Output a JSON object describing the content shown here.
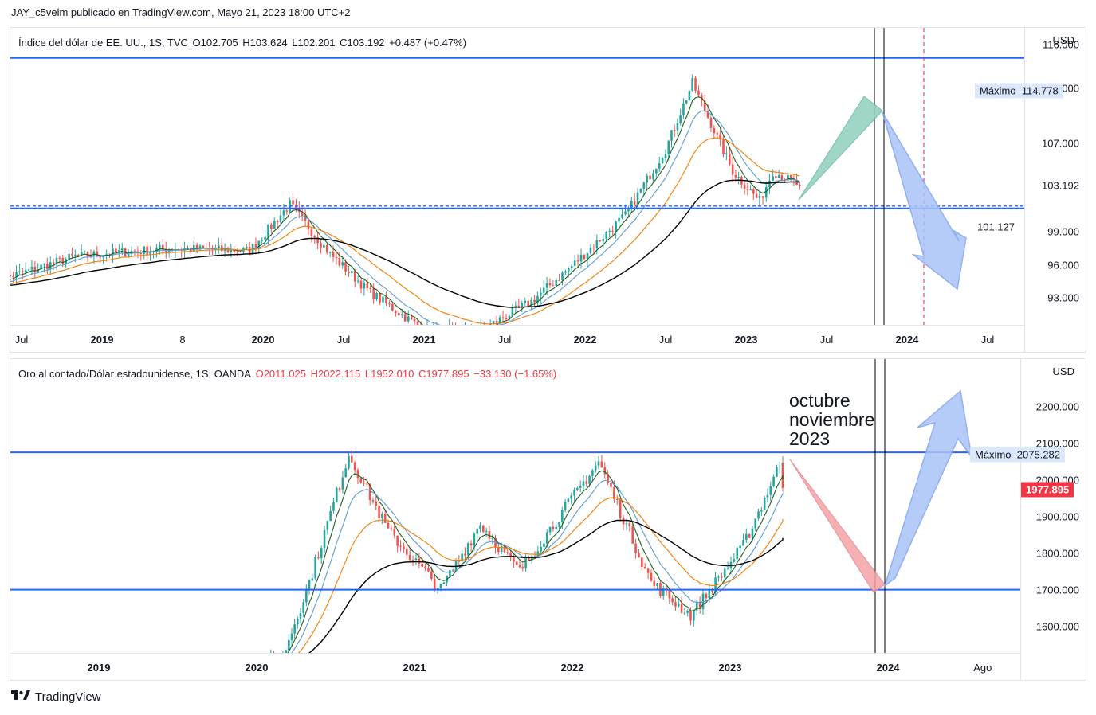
{
  "header": {
    "publisher": "JAY_c5velm publicado en TradingView.com, Mayo 21, 2023 18:00 UTC+2"
  },
  "footer": {
    "brand": "TradingView",
    "logo_icon": "tradingview-logo-icon"
  },
  "colors": {
    "up": "#26a69a",
    "down": "#ef5350",
    "level_line": "#2962ff",
    "ema_fast": "#1b5e20",
    "ema_mid": "#5b9bd5",
    "ema_slow": "#f57c00",
    "sma_long": "#000000",
    "proj_up": "#8fcfbf",
    "proj_down": "#f4a3a8",
    "arrow_fill": "#a9c3f7"
  },
  "chart_data": [
    {
      "type": "candlestick",
      "title": "Índice del dólar de EE. UU., 1S, TVC",
      "ohlc": {
        "O": "O102.705",
        "H": "H103.624",
        "L": "L102.201",
        "C": "C103.192",
        "change": "+0.487 (+0.47%)"
      },
      "currency": "USD",
      "yticks": [
        "116.000",
        "112.000",
        "107.000",
        "103.192",
        "99.000",
        "96.000",
        "93.000"
      ],
      "ylim": [
        90.5,
        117.5
      ],
      "x_labels": [
        {
          "label": "Jul",
          "bold": false
        },
        {
          "label": "2019",
          "bold": true
        },
        {
          "label": "8",
          "bold": false
        },
        {
          "label": "2020",
          "bold": true
        },
        {
          "label": "Jul",
          "bold": false
        },
        {
          "label": "2021",
          "bold": true
        },
        {
          "label": "Jul",
          "bold": false
        },
        {
          "label": "2022",
          "bold": true
        },
        {
          "label": "Jul",
          "bold": false
        },
        {
          "label": "2023",
          "bold": true
        },
        {
          "label": "Jul",
          "bold": false
        },
        {
          "label": "2024",
          "bold": true
        },
        {
          "label": "Jul",
          "bold": false
        }
      ],
      "key_points": [
        {
          "date": "2018-05",
          "value": 94.5
        },
        {
          "date": "2018-11",
          "value": 96.8
        },
        {
          "date": "2019-06",
          "value": 97.5
        },
        {
          "date": "2019-12",
          "value": 97.3
        },
        {
          "date": "2020-03",
          "value": 101.5
        },
        {
          "date": "2020-06",
          "value": 97.0
        },
        {
          "date": "2020-09",
          "value": 93.5
        },
        {
          "date": "2021-01",
          "value": 90.1
        },
        {
          "date": "2021-05",
          "value": 89.9
        },
        {
          "date": "2021-09",
          "value": 92.7
        },
        {
          "date": "2021-12",
          "value": 95.9
        },
        {
          "date": "2022-04",
          "value": 100.5
        },
        {
          "date": "2022-07",
          "value": 106.5
        },
        {
          "date": "2022-09",
          "value": 112.5
        },
        {
          "date": "2022-12",
          "value": 104.5
        },
        {
          "date": "2023-02",
          "value": 101.8
        },
        {
          "date": "2023-03",
          "value": 104.5
        },
        {
          "date": "2023-05",
          "value": 103.19
        }
      ],
      "levels": [
        {
          "name": "Máximo",
          "value": 114.778,
          "label": "114.778"
        },
        {
          "value": 101.127,
          "label": "101.127",
          "dashed": true
        }
      ],
      "max_label": "Máximo",
      "max_value": "114.778",
      "support_value": "101.127",
      "last_value": "103.192"
    },
    {
      "type": "candlestick",
      "title": "Oro al contado/Dólar estadounidense, 1S, OANDA",
      "ohlc": {
        "O": "O2011.025",
        "H": "H2022.115",
        "L": "L1952.010",
        "C": "C1977.895",
        "change": "−33.130 (−1.65%)"
      },
      "currency": "USD",
      "yticks": [
        "2200.000",
        "2100.000",
        "2000.000",
        "1900.000",
        "1800.000",
        "1700.000",
        "1600.000"
      ],
      "ylim": [
        1525,
        2330
      ],
      "x_labels": [
        {
          "label": "2019",
          "bold": true
        },
        {
          "label": "2020",
          "bold": true
        },
        {
          "label": "2021",
          "bold": true
        },
        {
          "label": "2022",
          "bold": true
        },
        {
          "label": "2023",
          "bold": true
        },
        {
          "label": "2024",
          "bold": true
        },
        {
          "label": "Ago",
          "bold": false
        }
      ],
      "key_points": [
        {
          "date": "2019-12",
          "value": 1480
        },
        {
          "date": "2020-03",
          "value": 1520
        },
        {
          "date": "2020-05",
          "value": 1720
        },
        {
          "date": "2020-08",
          "value": 2070
        },
        {
          "date": "2020-11",
          "value": 1860
        },
        {
          "date": "2021-03",
          "value": 1700
        },
        {
          "date": "2021-06",
          "value": 1880
        },
        {
          "date": "2021-09",
          "value": 1750
        },
        {
          "date": "2022-03",
          "value": 2050
        },
        {
          "date": "2022-07",
          "value": 1720
        },
        {
          "date": "2022-10",
          "value": 1630
        },
        {
          "date": "2023-02",
          "value": 1820
        },
        {
          "date": "2023-05",
          "value": 2060
        },
        {
          "date": "2023-05",
          "value": 1977.9
        }
      ],
      "levels": [
        {
          "name": "Máximo",
          "value": 2075.282,
          "label": "2075.282"
        },
        {
          "value": 1700
        }
      ],
      "max_label": "Máximo",
      "max_value": "2075.282",
      "last_value": "1977.895"
    }
  ],
  "annotation": {
    "line1": "octubre",
    "line2": "noviembre",
    "line3": "2023"
  }
}
